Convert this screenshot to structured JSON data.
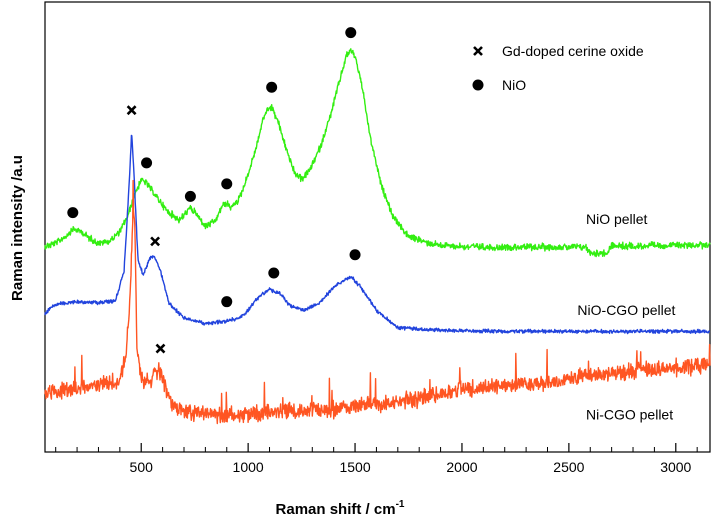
{
  "chart_data": {
    "type": "line",
    "xlabel": "Raman shift / cm",
    "xlabel_superscript": "-1",
    "ylabel": "Raman intensity /a.u",
    "xlim": [
      50,
      3160
    ],
    "x_major_ticks": [
      500,
      1000,
      1500,
      2000,
      2500,
      3000
    ],
    "x_minor_step": 100,
    "y_ticks_shown": false,
    "grid": false,
    "legend_position": "top-right",
    "legend": [
      {
        "marker": "cross",
        "label": "Gd-doped cerine oxide"
      },
      {
        "marker": "dot",
        "label": "NiO"
      }
    ],
    "series": [
      {
        "name": "NiO pellet",
        "color": "#33ee11",
        "noise": 0.018,
        "points": [
          [
            50,
            255
          ],
          [
            100,
            252
          ],
          [
            150,
            244
          ],
          [
            180,
            237
          ],
          [
            220,
            240
          ],
          [
            260,
            247
          ],
          [
            300,
            252
          ],
          [
            350,
            250
          ],
          [
            400,
            240
          ],
          [
            440,
            222
          ],
          [
            470,
            200
          ],
          [
            500,
            186
          ],
          [
            520,
            188
          ],
          [
            560,
            200
          ],
          [
            620,
            218
          ],
          [
            680,
            228
          ],
          [
            710,
            220
          ],
          [
            730,
            215
          ],
          [
            760,
            222
          ],
          [
            800,
            235
          ],
          [
            850,
            228
          ],
          [
            880,
            212
          ],
          [
            900,
            210
          ],
          [
            920,
            215
          ],
          [
            960,
            205
          ],
          [
            1000,
            180
          ],
          [
            1040,
            150
          ],
          [
            1070,
            122
          ],
          [
            1090,
            112
          ],
          [
            1110,
            110
          ],
          [
            1140,
            125
          ],
          [
            1180,
            155
          ],
          [
            1220,
            180
          ],
          [
            1250,
            185
          ],
          [
            1290,
            175
          ],
          [
            1340,
            150
          ],
          [
            1390,
            115
          ],
          [
            1430,
            80
          ],
          [
            1460,
            56
          ],
          [
            1480,
            50
          ],
          [
            1500,
            56
          ],
          [
            1530,
            85
          ],
          [
            1570,
            140
          ],
          [
            1620,
            190
          ],
          [
            1680,
            225
          ],
          [
            1750,
            245
          ],
          [
            1850,
            252
          ],
          [
            1950,
            255
          ],
          [
            2100,
            256
          ],
          [
            2300,
            256
          ],
          [
            2500,
            256
          ],
          [
            2580,
            256
          ],
          [
            2600,
            262
          ],
          [
            2640,
            262
          ],
          [
            2680,
            262
          ],
          [
            2700,
            255
          ],
          [
            2800,
            255
          ],
          [
            3000,
            254
          ],
          [
            3160,
            254
          ]
        ]
      },
      {
        "name": "NiO-CGO pellet",
        "color": "#2244dd",
        "noise": 0.01,
        "points": [
          [
            50,
            326
          ],
          [
            80,
            318
          ],
          [
            120,
            315
          ],
          [
            200,
            313
          ],
          [
            300,
            314
          ],
          [
            380,
            312
          ],
          [
            420,
            280
          ],
          [
            445,
            185
          ],
          [
            455,
            135
          ],
          [
            465,
            175
          ],
          [
            485,
            270
          ],
          [
            510,
            285
          ],
          [
            540,
            268
          ],
          [
            560,
            265
          ],
          [
            590,
            280
          ],
          [
            630,
            315
          ],
          [
            700,
            330
          ],
          [
            800,
            336
          ],
          [
            880,
            334
          ],
          [
            920,
            332
          ],
          [
            960,
            330
          ],
          [
            1000,
            322
          ],
          [
            1050,
            308
          ],
          [
            1100,
            300
          ],
          [
            1150,
            305
          ],
          [
            1200,
            318
          ],
          [
            1260,
            322
          ],
          [
            1330,
            315
          ],
          [
            1400,
            298
          ],
          [
            1450,
            290
          ],
          [
            1480,
            287
          ],
          [
            1520,
            296
          ],
          [
            1600,
            322
          ],
          [
            1700,
            340
          ],
          [
            1900,
            343
          ],
          [
            2200,
            344
          ],
          [
            2600,
            344
          ],
          [
            3160,
            344
          ]
        ]
      },
      {
        "name": "Ni-CGO pellet",
        "color": "#ff5522",
        "noise": 0.045,
        "points": [
          [
            50,
            410
          ],
          [
            150,
            405
          ],
          [
            250,
            402
          ],
          [
            350,
            398
          ],
          [
            400,
            395
          ],
          [
            430,
            370
          ],
          [
            450,
            300
          ],
          [
            462,
            210
          ],
          [
            470,
            235
          ],
          [
            480,
            360
          ],
          [
            500,
            395
          ],
          [
            540,
            395
          ],
          [
            580,
            385
          ],
          [
            600,
            392
          ],
          [
            640,
            420
          ],
          [
            700,
            428
          ],
          [
            800,
            430
          ],
          [
            900,
            430
          ],
          [
            1000,
            430
          ],
          [
            1200,
            428
          ],
          [
            1400,
            425
          ],
          [
            1600,
            420
          ],
          [
            1800,
            415
          ],
          [
            2000,
            405
          ],
          [
            2200,
            400
          ],
          [
            2400,
            398
          ],
          [
            2600,
            390
          ],
          [
            2800,
            385
          ],
          [
            3000,
            382
          ],
          [
            3160,
            378
          ]
        ]
      }
    ],
    "annotations": [
      {
        "marker": "dot",
        "x": 180,
        "y": 220
      },
      {
        "marker": "cross",
        "x": 455,
        "y": 113
      },
      {
        "marker": "dot",
        "x": 525,
        "y": 168
      },
      {
        "marker": "dot",
        "x": 730,
        "y": 203
      },
      {
        "marker": "dot",
        "x": 900,
        "y": 190
      },
      {
        "marker": "dot",
        "x": 1110,
        "y": 89
      },
      {
        "marker": "dot",
        "x": 1480,
        "y": 32
      },
      {
        "marker": "cross",
        "x": 565,
        "y": 250
      },
      {
        "marker": "dot",
        "x": 900,
        "y": 313
      },
      {
        "marker": "dot",
        "x": 1120,
        "y": 283
      },
      {
        "marker": "dot",
        "x": 1500,
        "y": 264
      },
      {
        "marker": "cross",
        "x": 590,
        "y": 362
      }
    ],
    "series_labels": [
      {
        "text": "NiO pellet",
        "x": 2580,
        "y": 232
      },
      {
        "text": "NiO-CGO pellet",
        "x": 2540,
        "y": 327
      },
      {
        "text": "Ni-CGO pellet",
        "x": 2580,
        "y": 436
      }
    ]
  }
}
